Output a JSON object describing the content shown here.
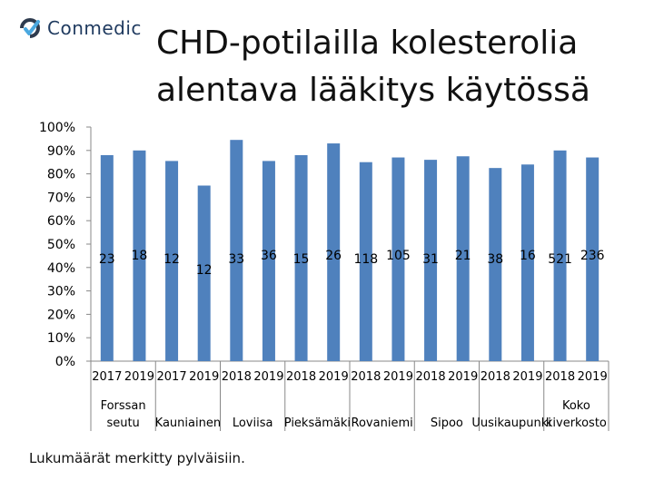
{
  "logo": {
    "text": "Conmedic",
    "icon": "conmedic-logo-icon"
  },
  "title_lines": [
    "CHD-potilailla kolesterolia",
    "alentava lääkitys käytössä"
  ],
  "footnote": "Lukumäärät merkitty pylväisiin.",
  "colors": {
    "bar": "#4f81bd",
    "axis": "#888888",
    "text": "#000000"
  },
  "chart_data": {
    "type": "bar",
    "ylim": [
      0,
      100
    ],
    "ytick_values": [
      0,
      10,
      20,
      30,
      40,
      50,
      60,
      70,
      80,
      90,
      100
    ],
    "ytick_labels": [
      "0%",
      "10%",
      "20%",
      "30%",
      "40%",
      "50%",
      "60%",
      "70%",
      "80%",
      "90%",
      "100%"
    ],
    "grid": false,
    "legend": "none",
    "categories": [
      "2017",
      "2019",
      "2017",
      "2019",
      "2018",
      "2019",
      "2018",
      "2019",
      "2018",
      "2019",
      "2018",
      "2019",
      "2018",
      "2019",
      "2018",
      "2019"
    ],
    "values": [
      88,
      90,
      85.5,
      75,
      94.5,
      85.5,
      88,
      93,
      85,
      87,
      86,
      87.5,
      82.5,
      84,
      90,
      87
    ],
    "data_labels": [
      "23",
      "18",
      "12",
      "12",
      "33",
      "36",
      "15",
      "26",
      "118",
      "105",
      "31",
      "21",
      "38",
      "16",
      "521",
      "236"
    ],
    "groups": [
      {
        "lines": [
          "Forssan",
          "seutu"
        ]
      },
      {
        "lines": [
          "Kauniainen"
        ]
      },
      {
        "lines": [
          "Loviisa"
        ]
      },
      {
        "lines": [
          "Pieksämäki"
        ]
      },
      {
        "lines": [
          "Rovaniemi"
        ]
      },
      {
        "lines": [
          "Sipoo"
        ]
      },
      {
        "lines": [
          "Uusikaupunki"
        ]
      },
      {
        "lines": [
          "Koko",
          "kiverkosto"
        ]
      }
    ]
  }
}
